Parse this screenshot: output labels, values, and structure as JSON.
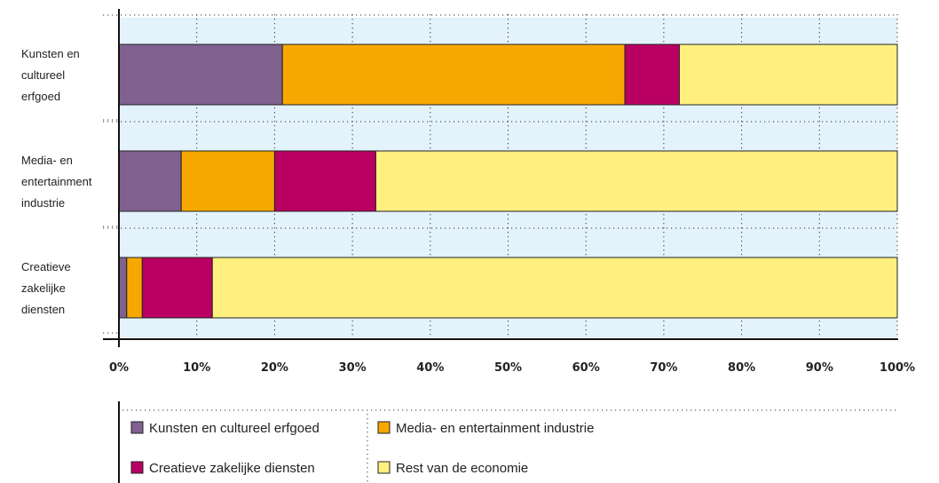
{
  "chart_data": {
    "type": "bar",
    "orientation": "horizontal",
    "stacked": true,
    "categories": [
      [
        "Kunsten en",
        "cultureel",
        "erfgoed"
      ],
      [
        "Media- en",
        "entertainment",
        "industrie"
      ],
      [
        "Creatieve",
        "zakelijke",
        "diensten"
      ]
    ],
    "series": [
      {
        "name": "Kunsten en cultureel erfgoed",
        "color": "#80618f",
        "values": [
          21,
          8,
          1
        ]
      },
      {
        "name": "Media- en entertainment industrie",
        "color": "#f7a800",
        "values": [
          44,
          12,
          2
        ]
      },
      {
        "name": "Creatieve zakelijke diensten",
        "color": "#b90062",
        "values": [
          7,
          13,
          9
        ]
      },
      {
        "name": "Rest van de economie",
        "color": "#fff07f",
        "values": [
          28,
          67,
          88
        ]
      }
    ],
    "x_ticks": [
      "0%",
      "10%",
      "20%",
      "30%",
      "40%",
      "50%",
      "60%",
      "70%",
      "80%",
      "90%",
      "100%"
    ],
    "xlim": [
      0,
      100
    ],
    "grid": true,
    "legend_position": "bottom",
    "band_color": "#e3f2fb"
  }
}
